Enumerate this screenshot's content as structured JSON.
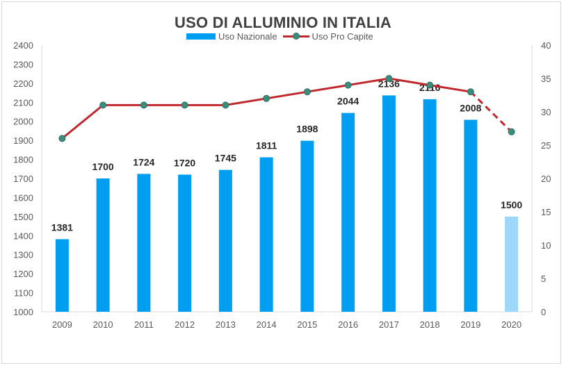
{
  "chart_data": {
    "type": "bar",
    "title": "USO DI ALLUMINIO IN ITALIA",
    "categories": [
      "2009",
      "2010",
      "2011",
      "2012",
      "2013",
      "2014",
      "2015",
      "2016",
      "2017",
      "2018",
      "2019",
      "2020"
    ],
    "series": [
      {
        "name": "Uso Nazionale",
        "type": "bar",
        "axis": "left",
        "values": [
          1381,
          1700,
          1724,
          1720,
          1745,
          1811,
          1898,
          2044,
          2136,
          2116,
          2008,
          1500
        ],
        "color": "#009ef0",
        "highlight_color": "#9dd8fb",
        "highlight_index": 11
      },
      {
        "name": "Uso Pro Capite",
        "type": "line",
        "axis": "right",
        "values": [
          26,
          31,
          31,
          31,
          31,
          32,
          33,
          34,
          35,
          34,
          33,
          27
        ],
        "color": "#c0282d",
        "marker_color": "#3c8c7c",
        "dashed_last_segment": true
      }
    ],
    "y_left": {
      "min": 1000,
      "max": 2400,
      "step": 100
    },
    "y_right": {
      "min": 0,
      "max": 40,
      "step": 5
    },
    "grid": false,
    "legend_position": "top"
  }
}
